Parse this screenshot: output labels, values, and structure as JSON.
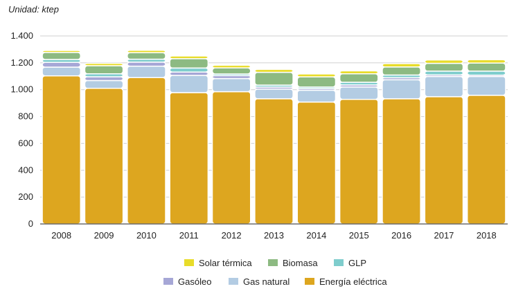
{
  "unit_label": "Unidad: ktep",
  "chart_data": {
    "type": "bar",
    "stacked": true,
    "categories": [
      "2008",
      "2009",
      "2010",
      "2011",
      "2012",
      "2013",
      "2014",
      "2015",
      "2016",
      "2017",
      "2018"
    ],
    "ylim": [
      0,
      1400
    ],
    "yticks": [
      0,
      200,
      400,
      600,
      800,
      1000,
      1200,
      1400
    ],
    "ytick_labels": [
      "0",
      "200",
      "400",
      "600",
      "800",
      "1.000",
      "1.200",
      "1.400"
    ],
    "grid": true,
    "legend_position": "bottom",
    "series": [
      {
        "name": "Energía eléctrica",
        "color": "#DDA61F",
        "values": [
          1103,
          1010,
          1090,
          978,
          985,
          932,
          908,
          928,
          932,
          948,
          958
        ]
      },
      {
        "name": "Gas natural",
        "color": "#B3CCE3",
        "values": [
          65,
          58,
          85,
          128,
          98,
          72,
          88,
          92,
          142,
          150,
          140
        ]
      },
      {
        "name": "Gasóleo",
        "color": "#A6A7D6",
        "values": [
          35,
          28,
          30,
          25,
          22,
          15,
          12,
          15,
          15,
          12,
          10
        ]
      },
      {
        "name": "GLP",
        "color": "#7FCDCD",
        "values": [
          22,
          22,
          22,
          30,
          12,
          15,
          12,
          20,
          20,
          28,
          30
        ]
      },
      {
        "name": "Biomasa",
        "color": "#8DBA82",
        "values": [
          52,
          60,
          48,
          70,
          45,
          95,
          75,
          63,
          60,
          58,
          60
        ]
      },
      {
        "name": "Solar térmica",
        "color": "#E8DC2A",
        "values": [
          15,
          18,
          18,
          20,
          20,
          22,
          22,
          22,
          25,
          25,
          25
        ]
      }
    ]
  }
}
